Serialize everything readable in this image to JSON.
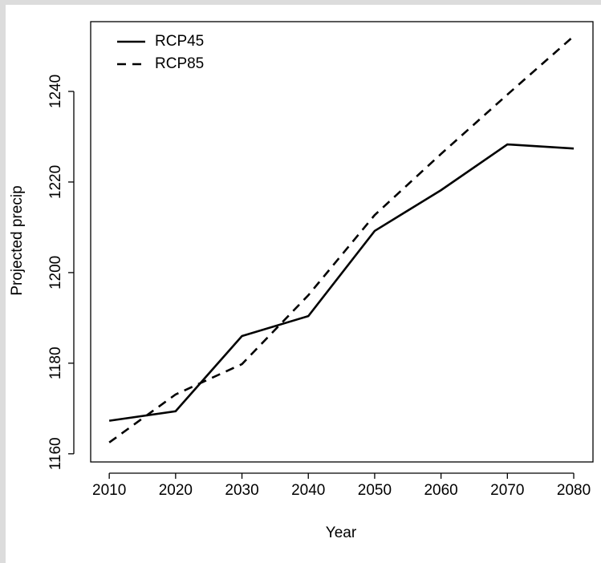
{
  "chart_data": {
    "type": "line",
    "xlabel": "Year",
    "ylabel": "Projected precip",
    "x": [
      2010,
      2020,
      2030,
      2040,
      2050,
      2060,
      2070,
      2080
    ],
    "series": [
      {
        "name": "RCP45",
        "color": "#000000",
        "dash": "solid",
        "values": [
          1167.3,
          1169.4,
          1186.0,
          1190.4,
          1209.2,
          1218.2,
          1228.3,
          1227.4
        ]
      },
      {
        "name": "RCP85",
        "color": "#000000",
        "dash": "dashed",
        "values": [
          1162.5,
          1173.1,
          1179.8,
          1195.0,
          1212.7,
          1226.2,
          1239.3,
          1252.2
        ]
      }
    ],
    "xlim": [
      2007.2,
      2082.9
    ],
    "xticks": [
      2010,
      2020,
      2030,
      2040,
      2050,
      2060,
      2070,
      2080
    ],
    "ylim": [
      1158.2,
      1255.4
    ],
    "yticks": [
      1160,
      1180,
      1200,
      1220,
      1240
    ],
    "legend": "topleft"
  }
}
